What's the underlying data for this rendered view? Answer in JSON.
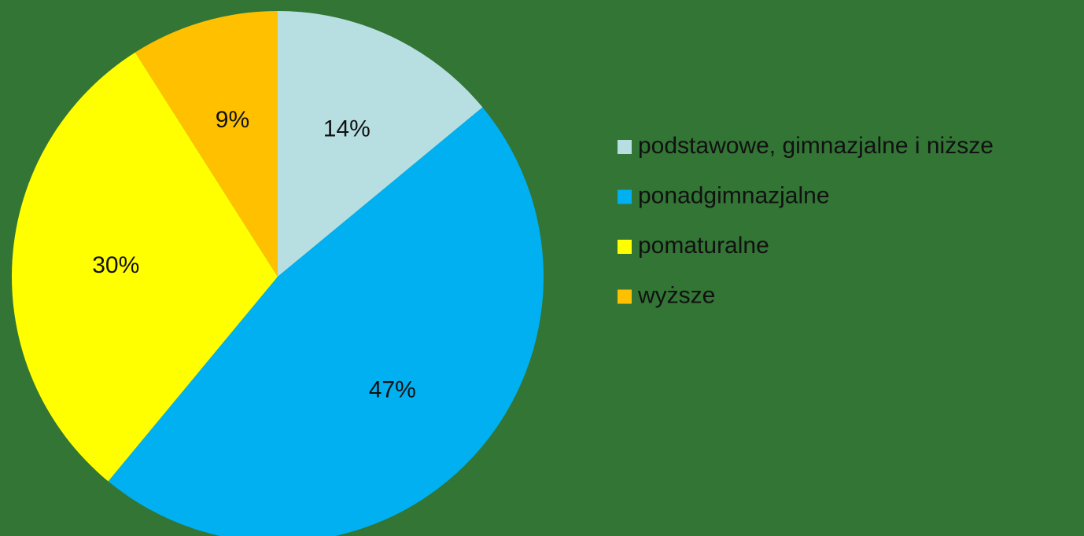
{
  "chart_data": {
    "type": "pie",
    "categories": [
      "podstawowe, gimnazjalne i niższe",
      "ponadgimnazjalne",
      "pomaturalne",
      "wyższe"
    ],
    "values": [
      14,
      47,
      30,
      9
    ],
    "value_labels": [
      "14%",
      "47%",
      "30%",
      "9%"
    ],
    "colors": [
      "#b7dfe2",
      "#00b0f0",
      "#ffff00",
      "#ffc000"
    ],
    "legend": "right"
  }
}
